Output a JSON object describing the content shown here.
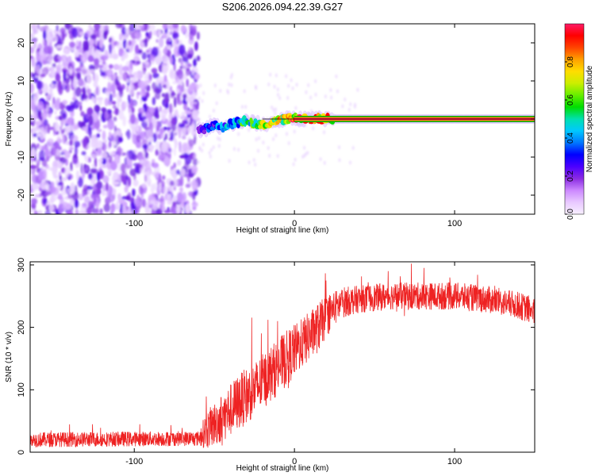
{
  "title": "S206.2026.094.22.39.G27",
  "chart_data": [
    {
      "type": "heatmap",
      "title": "S206.2026.094.22.39.G27",
      "xlabel": "Height of straight line (km)",
      "ylabel": "Frequency (Hz)",
      "xlim": [
        -165,
        150
      ],
      "ylim": [
        -25,
        25
      ],
      "x_ticks": [
        -100,
        0,
        100
      ],
      "x_tick_labels": [
        "-100",
        "0",
        "100"
      ],
      "y_ticks": [
        -20,
        -10,
        0,
        10,
        20
      ],
      "y_tick_labels": [
        "-20",
        "-10",
        "0",
        "10",
        "20"
      ],
      "noise_region_x": [
        -165,
        -60
      ],
      "signal_ridge": {
        "x": [
          -60,
          -55,
          -50,
          -45,
          -40,
          -35,
          -30,
          -25,
          -20,
          -15,
          -10,
          -5,
          0,
          5,
          10,
          15,
          20,
          25,
          150
        ],
        "freq": [
          -3,
          -2.5,
          -1.5,
          -2.5,
          -1.5,
          -1,
          -0.5,
          -1,
          -1.5,
          -1,
          -0.5,
          0,
          0.3,
          0,
          0.1,
          0,
          0,
          0,
          0
        ],
        "amplitude": [
          0.25,
          0.3,
          0.35,
          0.4,
          0.45,
          0.5,
          0.55,
          0.6,
          0.65,
          0.7,
          0.75,
          0.8,
          0.85,
          0.88,
          0.9,
          0.92,
          0.95,
          0.97,
          0.97
        ]
      },
      "colorbar": {
        "label": "Normalized spectral amplitude",
        "range": [
          0,
          1
        ],
        "ticks": [
          0,
          0.2,
          0.4,
          0.6,
          0.8
        ],
        "tick_labels": [
          "0.0",
          "0.2",
          "0.4",
          "0.6",
          "0.8"
        ],
        "colors": [
          "#f7f0ff",
          "#e8c8ff",
          "#cc88ff",
          "#8a2be2",
          "#4b00ff",
          "#0000ff",
          "#0077ff",
          "#00c8ff",
          "#00e0b0",
          "#00dd00",
          "#66ee00",
          "#ccee00",
          "#ffdd00",
          "#ffa000",
          "#ff4400",
          "#ff0000",
          "#ff1a66"
        ]
      }
    },
    {
      "type": "line",
      "xlabel": "Height of straight line (km)",
      "ylabel": "SNR (10 * v/v)",
      "xlim": [
        -165,
        150
      ],
      "ylim": [
        0,
        305
      ],
      "x_ticks": [
        -100,
        0,
        100
      ],
      "x_tick_labels": [
        "-100",
        "0",
        "100"
      ],
      "y_ticks": [
        0,
        100,
        200,
        300
      ],
      "y_tick_labels": [
        "0",
        "100",
        "200",
        "300"
      ],
      "series": [
        {
          "name": "SNR",
          "color": "#ee2222",
          "trend_x": [
            -165,
            -60,
            -55,
            -45,
            -35,
            -25,
            -15,
            -5,
            5,
            15,
            22,
            30,
            40,
            60,
            80,
            100,
            120,
            140,
            150
          ],
          "trend_y": [
            20,
            22,
            35,
            55,
            80,
            100,
            125,
            150,
            175,
            200,
            225,
            240,
            245,
            250,
            250,
            250,
            245,
            235,
            225
          ],
          "noise_amplitude": [
            12,
            12,
            30,
            40,
            45,
            45,
            45,
            45,
            40,
            40,
            30,
            25,
            22,
            22,
            22,
            22,
            22,
            22,
            22
          ],
          "points": 2200
        }
      ]
    }
  ]
}
